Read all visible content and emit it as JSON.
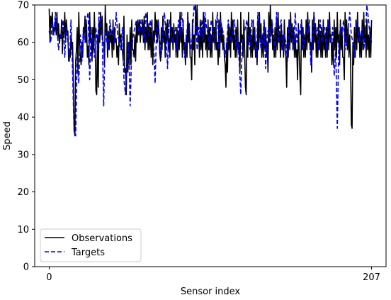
{
  "colors": {
    "observations": "#000000",
    "targets": "#0000ff",
    "background": "#ffffff",
    "axes": "#000000"
  },
  "chart_data": {
    "type": "line",
    "title": "",
    "xlabel": "Sensor index",
    "ylabel": "Speed",
    "xlim": [
      -9.3,
      216.3
    ],
    "ylim": [
      0,
      70
    ],
    "xticks": [
      0,
      207
    ],
    "xtick_labels": [
      "0",
      "207"
    ],
    "yticks": [
      0,
      10,
      20,
      30,
      40,
      50,
      60,
      70
    ],
    "ytick_labels": [
      "0",
      "10",
      "20",
      "30",
      "40",
      "50",
      "60",
      "70"
    ],
    "grid": false,
    "legend": {
      "placement": "lower-left",
      "entries": [
        "Observations",
        "Targets"
      ]
    },
    "x": [
      0,
      1,
      2,
      3,
      4,
      5,
      6,
      7,
      8,
      9,
      10,
      11,
      12,
      13,
      14,
      15,
      16,
      17,
      18,
      19,
      20,
      21,
      22,
      23,
      24,
      25,
      26,
      27,
      28,
      29,
      30,
      31,
      32,
      33,
      34,
      35,
      36,
      37,
      38,
      39,
      40,
      41,
      42,
      43,
      44,
      45,
      46,
      47,
      48,
      49,
      50,
      51,
      52,
      53,
      54,
      55,
      56,
      57,
      58,
      59,
      60,
      61,
      62,
      63,
      64,
      65,
      66,
      67,
      68,
      69,
      70,
      71,
      72,
      73,
      74,
      75,
      76,
      77,
      78,
      79,
      80,
      81,
      82,
      83,
      84,
      85,
      86,
      87,
      88,
      89,
      90,
      91,
      92,
      93,
      94,
      95,
      96,
      97,
      98,
      99,
      100,
      101,
      102,
      103,
      104,
      105,
      106,
      107,
      108,
      109,
      110,
      111,
      112,
      113,
      114,
      115,
      116,
      117,
      118,
      119,
      120,
      121,
      122,
      123,
      124,
      125,
      126,
      127,
      128,
      129,
      130,
      131,
      132,
      133,
      134,
      135,
      136,
      137,
      138,
      139,
      140,
      141,
      142,
      143,
      144,
      145,
      146,
      147,
      148,
      149,
      150,
      151,
      152,
      153,
      154,
      155,
      156,
      157,
      158,
      159,
      160,
      161,
      162,
      163,
      164,
      165,
      166,
      167,
      168,
      169,
      170,
      171,
      172,
      173,
      174,
      175,
      176,
      177,
      178,
      179,
      180,
      181,
      182,
      183,
      184,
      185,
      186,
      187,
      188,
      189,
      190,
      191,
      192,
      193,
      194,
      195,
      196,
      197,
      198,
      199,
      200,
      201,
      202,
      203,
      204,
      205,
      206,
      207
    ],
    "series": [
      {
        "name": "Observations",
        "style": "solid",
        "color": "#000000",
        "values": [
          69,
          67,
          68,
          64,
          66,
          68,
          65,
          62,
          66,
          64,
          68,
          66,
          63,
          58,
          62,
          60,
          37,
          55,
          64,
          68,
          56,
          60,
          64,
          67,
          65,
          59,
          68,
          61,
          64,
          68,
          47,
          62,
          66,
          68,
          67,
          60,
          70,
          65,
          63,
          64,
          62,
          66,
          64,
          61,
          59,
          65,
          62,
          58,
          67,
          53,
          62,
          60,
          64,
          66,
          58,
          62,
          65,
          66,
          66,
          64,
          66,
          67,
          64,
          68,
          65,
          64,
          66,
          63,
          68,
          66,
          66,
          57,
          64,
          67,
          63,
          65,
          66,
          61,
          68,
          64,
          65,
          62,
          64,
          63,
          68,
          64,
          66,
          60,
          62,
          68,
          65,
          56,
          66,
          62,
          70,
          70,
          62,
          66,
          64,
          68,
          66,
          62,
          66,
          64,
          62,
          68,
          64,
          66,
          60,
          66,
          68,
          64,
          62,
          54,
          60,
          65,
          64,
          68,
          66,
          62,
          64,
          66,
          60,
          68,
          62,
          66,
          48,
          64,
          68,
          64,
          62,
          66,
          64,
          60,
          66,
          68,
          65,
          62,
          66,
          64,
          60,
          68,
          70,
          66,
          62,
          64,
          66,
          68,
          63,
          65,
          62,
          66,
          56,
          64,
          66,
          68,
          65,
          64,
          62,
          58,
          65,
          51,
          66,
          64,
          62,
          66,
          68,
          64,
          60,
          66,
          68,
          65,
          62,
          66,
          63,
          64,
          66,
          62,
          64,
          66,
          68,
          62,
          60,
          66,
          64,
          68,
          62,
          66,
          64,
          56,
          68,
          66,
          64,
          62,
          38,
          60,
          64,
          66,
          68,
          64,
          62,
          66,
          68,
          64,
          66,
          62,
          64,
          66
        ],
        "min_values": [
          60,
          64,
          62,
          63,
          62,
          61,
          60,
          61,
          57,
          62,
          60,
          63,
          55,
          56,
          58,
          50,
          35,
          58,
          52,
          60,
          54,
          56,
          62,
          60,
          56,
          54,
          60,
          55,
          58,
          60,
          46,
          48,
          60,
          62,
          60,
          54,
          62,
          56,
          58,
          60,
          56,
          58,
          60,
          56,
          54,
          60,
          58,
          55,
          52,
          46,
          52,
          54,
          54,
          58,
          56,
          55,
          60,
          62,
          60,
          62,
          60,
          58,
          60,
          58,
          58,
          56,
          54,
          60,
          62,
          60,
          62,
          55,
          58,
          60,
          56,
          60,
          58,
          56,
          60,
          58,
          60,
          56,
          56,
          58,
          60,
          56,
          58,
          54,
          56,
          60,
          56,
          50,
          58,
          54,
          62,
          60,
          56,
          58,
          56,
          60,
          58,
          56,
          58,
          56,
          56,
          60,
          58,
          58,
          54,
          56,
          60,
          58,
          56,
          48,
          52,
          58,
          56,
          60,
          58,
          56,
          56,
          58,
          52,
          60,
          56,
          58,
          46,
          56,
          60,
          56,
          56,
          58,
          56,
          54,
          58,
          60,
          56,
          56,
          58,
          56,
          52,
          60,
          62,
          58,
          56,
          56,
          58,
          60,
          56,
          58,
          56,
          58,
          48,
          56,
          58,
          60,
          58,
          56,
          56,
          50,
          58,
          46,
          58,
          56,
          56,
          58,
          60,
          58,
          52,
          58,
          60,
          56,
          56,
          58,
          56,
          56,
          58,
          56,
          56,
          58,
          60,
          54,
          54,
          58,
          56,
          60,
          54,
          58,
          56,
          50,
          60,
          58,
          56,
          56,
          37,
          54,
          56,
          58,
          60,
          56,
          56,
          58,
          60,
          56,
          58,
          56,
          56,
          58
        ]
      },
      {
        "name": "Targets",
        "style": "dashed",
        "color": "#0000ff",
        "values": [
          63,
          60,
          66,
          62,
          68,
          64,
          58,
          61,
          63,
          66,
          56,
          64,
          60,
          55,
          66,
          52,
          36,
          35,
          56,
          49,
          62,
          55,
          64,
          60,
          66,
          68,
          50,
          64,
          60,
          56,
          64,
          58,
          68,
          66,
          62,
          43,
          64,
          60,
          58,
          66,
          62,
          64,
          60,
          68,
          62,
          60,
          58,
          64,
          50,
          46,
          55,
          60,
          43,
          58,
          62,
          64,
          66,
          64,
          62,
          66,
          64,
          60,
          68,
          64,
          62,
          66,
          62,
          60,
          49,
          64,
          66,
          60,
          56,
          64,
          68,
          62,
          53,
          66,
          64,
          60,
          62,
          64,
          58,
          66,
          62,
          68,
          64,
          56,
          60,
          66,
          64,
          58,
          62,
          70,
          68,
          58,
          64,
          62,
          66,
          60,
          68,
          64,
          62,
          58,
          66,
          64,
          60,
          62,
          68,
          58,
          66,
          64,
          62,
          56,
          60,
          66,
          62,
          60,
          64,
          66,
          58,
          62,
          55,
          46,
          60,
          62,
          64,
          66,
          60,
          58,
          66,
          64,
          62,
          56,
          68,
          64,
          58,
          60,
          66,
          53,
          62,
          64,
          60,
          66,
          62,
          58,
          68,
          60,
          64,
          66,
          58,
          62,
          60,
          55,
          66,
          64,
          62,
          58,
          68,
          60,
          64,
          62,
          66,
          58,
          60,
          64,
          62,
          66,
          54,
          60,
          68,
          62,
          64,
          58,
          66,
          60,
          62,
          64,
          58,
          66,
          62,
          60,
          64,
          51,
          58,
          37,
          60,
          64,
          62,
          66,
          58,
          60,
          64,
          68,
          62,
          60,
          56,
          64,
          66,
          60,
          62,
          64,
          58,
          62,
          70,
          66,
          62,
          60
        ]
      }
    ]
  }
}
